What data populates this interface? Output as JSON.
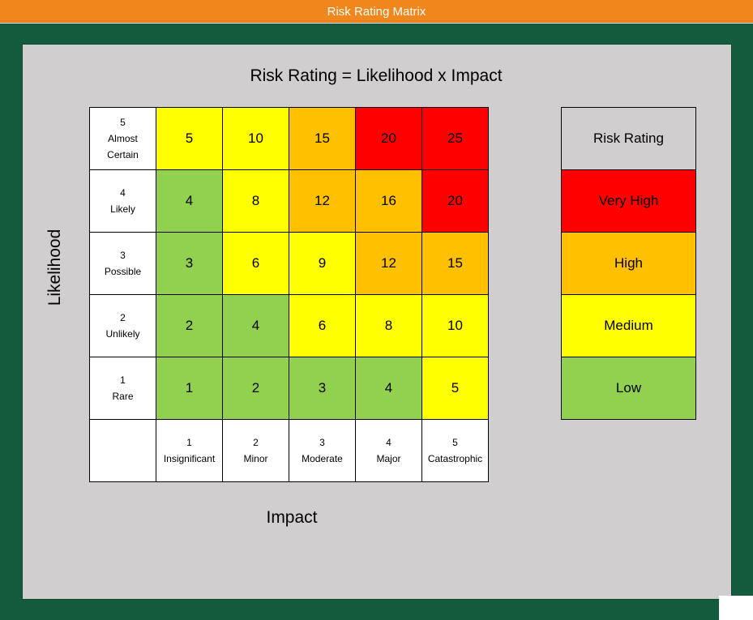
{
  "window": {
    "title": "Risk Rating Matrix"
  },
  "matrix": {
    "title": "Risk Rating = Likelihood x Impact",
    "y_label": "Likelihood",
    "x_label": "Impact",
    "rows": [
      {
        "num": "5",
        "label": "Almost",
        "label2": "Certain",
        "cells": [
          "5",
          "10",
          "15",
          "20",
          "25"
        ],
        "levels": [
          "medium",
          "medium",
          "high",
          "veryhigh",
          "veryhigh"
        ]
      },
      {
        "num": "4",
        "label": "Likely",
        "label2": "",
        "cells": [
          "4",
          "8",
          "12",
          "16",
          "20"
        ],
        "levels": [
          "low",
          "medium",
          "high",
          "high",
          "veryhigh"
        ]
      },
      {
        "num": "3",
        "label": "Possible",
        "label2": "",
        "cells": [
          "3",
          "6",
          "9",
          "12",
          "15"
        ],
        "levels": [
          "low",
          "medium",
          "medium",
          "high",
          "high"
        ]
      },
      {
        "num": "2",
        "label": "Unlikely",
        "label2": "",
        "cells": [
          "2",
          "4",
          "6",
          "8",
          "10"
        ],
        "levels": [
          "low",
          "low",
          "medium",
          "medium",
          "medium"
        ]
      },
      {
        "num": "1",
        "label": "Rare",
        "label2": "",
        "cells": [
          "1",
          "2",
          "3",
          "4",
          "5"
        ],
        "levels": [
          "low",
          "low",
          "low",
          "low",
          "medium"
        ]
      }
    ],
    "columns": [
      {
        "num": "1",
        "label": "Insignificant"
      },
      {
        "num": "2",
        "label": "Minor"
      },
      {
        "num": "3",
        "label": "Moderate"
      },
      {
        "num": "4",
        "label": "Major"
      },
      {
        "num": "5",
        "label": "Catastrophic"
      }
    ]
  },
  "legend": {
    "header": "Risk Rating",
    "items": [
      {
        "label": "Very High",
        "level": "veryhigh"
      },
      {
        "label": "High",
        "level": "high"
      },
      {
        "label": "Medium",
        "level": "medium"
      },
      {
        "label": "Low",
        "level": "low"
      }
    ]
  },
  "colors": {
    "title_bar": "#f0861c",
    "outer_frame": "#145a3c",
    "canvas": "#d0cece",
    "low": "#92d050",
    "medium": "#ffff00",
    "high": "#ffc000",
    "very_high": "#ff0000"
  }
}
